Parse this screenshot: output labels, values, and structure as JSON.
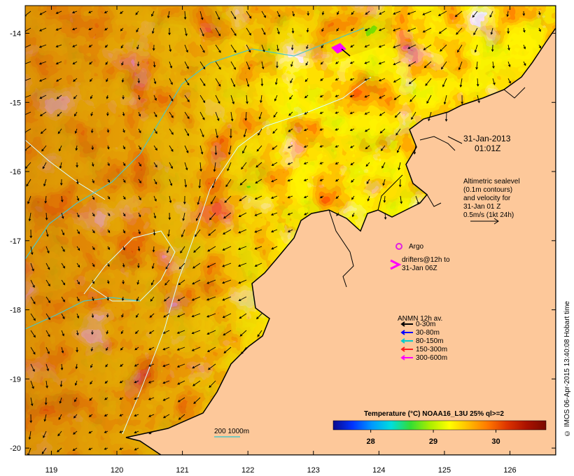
{
  "colors": {
    "land": "#fdc89a",
    "coast": "#000000",
    "contour": "#d0ffff",
    "isobath_200": "#4cc6c6",
    "argo": "#e020e0",
    "drifter": "#ff00ff",
    "anmn_0_30": "#000000",
    "anmn_30_80": "#0000ff",
    "anmn_80_150": "#00cccc",
    "anmn_150_300": "#ff2020",
    "anmn_300_600": "#ff00ff"
  },
  "map": {
    "lon_range": [
      118.6,
      126.7
    ],
    "lat_range": [
      -20.1,
      -13.6
    ],
    "x_ticks": [
      "119",
      "120",
      "121",
      "122",
      "123",
      "124",
      "125",
      "126"
    ],
    "y_ticks": [
      "-14",
      "-15",
      "-16",
      "-17",
      "-18",
      "-19",
      "-20"
    ]
  },
  "annotations": {
    "date": "31-Jan-2013",
    "time": "01:01Z",
    "altimetry_lines": [
      "Altimetric sealevel",
      "(0.1m contours)",
      "and velocity for",
      "31-Jan 01 Z",
      "0.5m/s (1kt 24h)"
    ],
    "argo_label": "Argo",
    "drifter_lines": [
      "drifters@12h to",
      "31-Jan 06Z"
    ],
    "isobath_label": "200  1000m"
  },
  "legend": {
    "title": "ANMN 12h av.",
    "items": [
      {
        "label": "0-30m",
        "color": "#000000"
      },
      {
        "label": "30-80m",
        "color": "#0000ff"
      },
      {
        "label": "80-150m",
        "color": "#00cccc"
      },
      {
        "label": "150-300m",
        "color": "#ff2020"
      },
      {
        "label": "300-600m",
        "color": "#ff00ff"
      }
    ]
  },
  "colorbar": {
    "title": "Temperature (°C) NOAA16_L3U 25% ql>=2",
    "ticks": [
      {
        "value": 28,
        "label": "28"
      },
      {
        "value": 29,
        "label": "29"
      },
      {
        "value": 30,
        "label": "30"
      }
    ],
    "range": [
      27.4,
      30.8
    ],
    "stops": [
      "#0a0a8c",
      "#0033ff",
      "#0099ff",
      "#00dddd",
      "#33dd33",
      "#aaee00",
      "#ffff00",
      "#ffbb00",
      "#ff7700",
      "#dd3300",
      "#aa1100",
      "#7a0a00"
    ]
  },
  "credit": "© IMOS 06-Apr-2015 13:40:08 Hobart time"
}
